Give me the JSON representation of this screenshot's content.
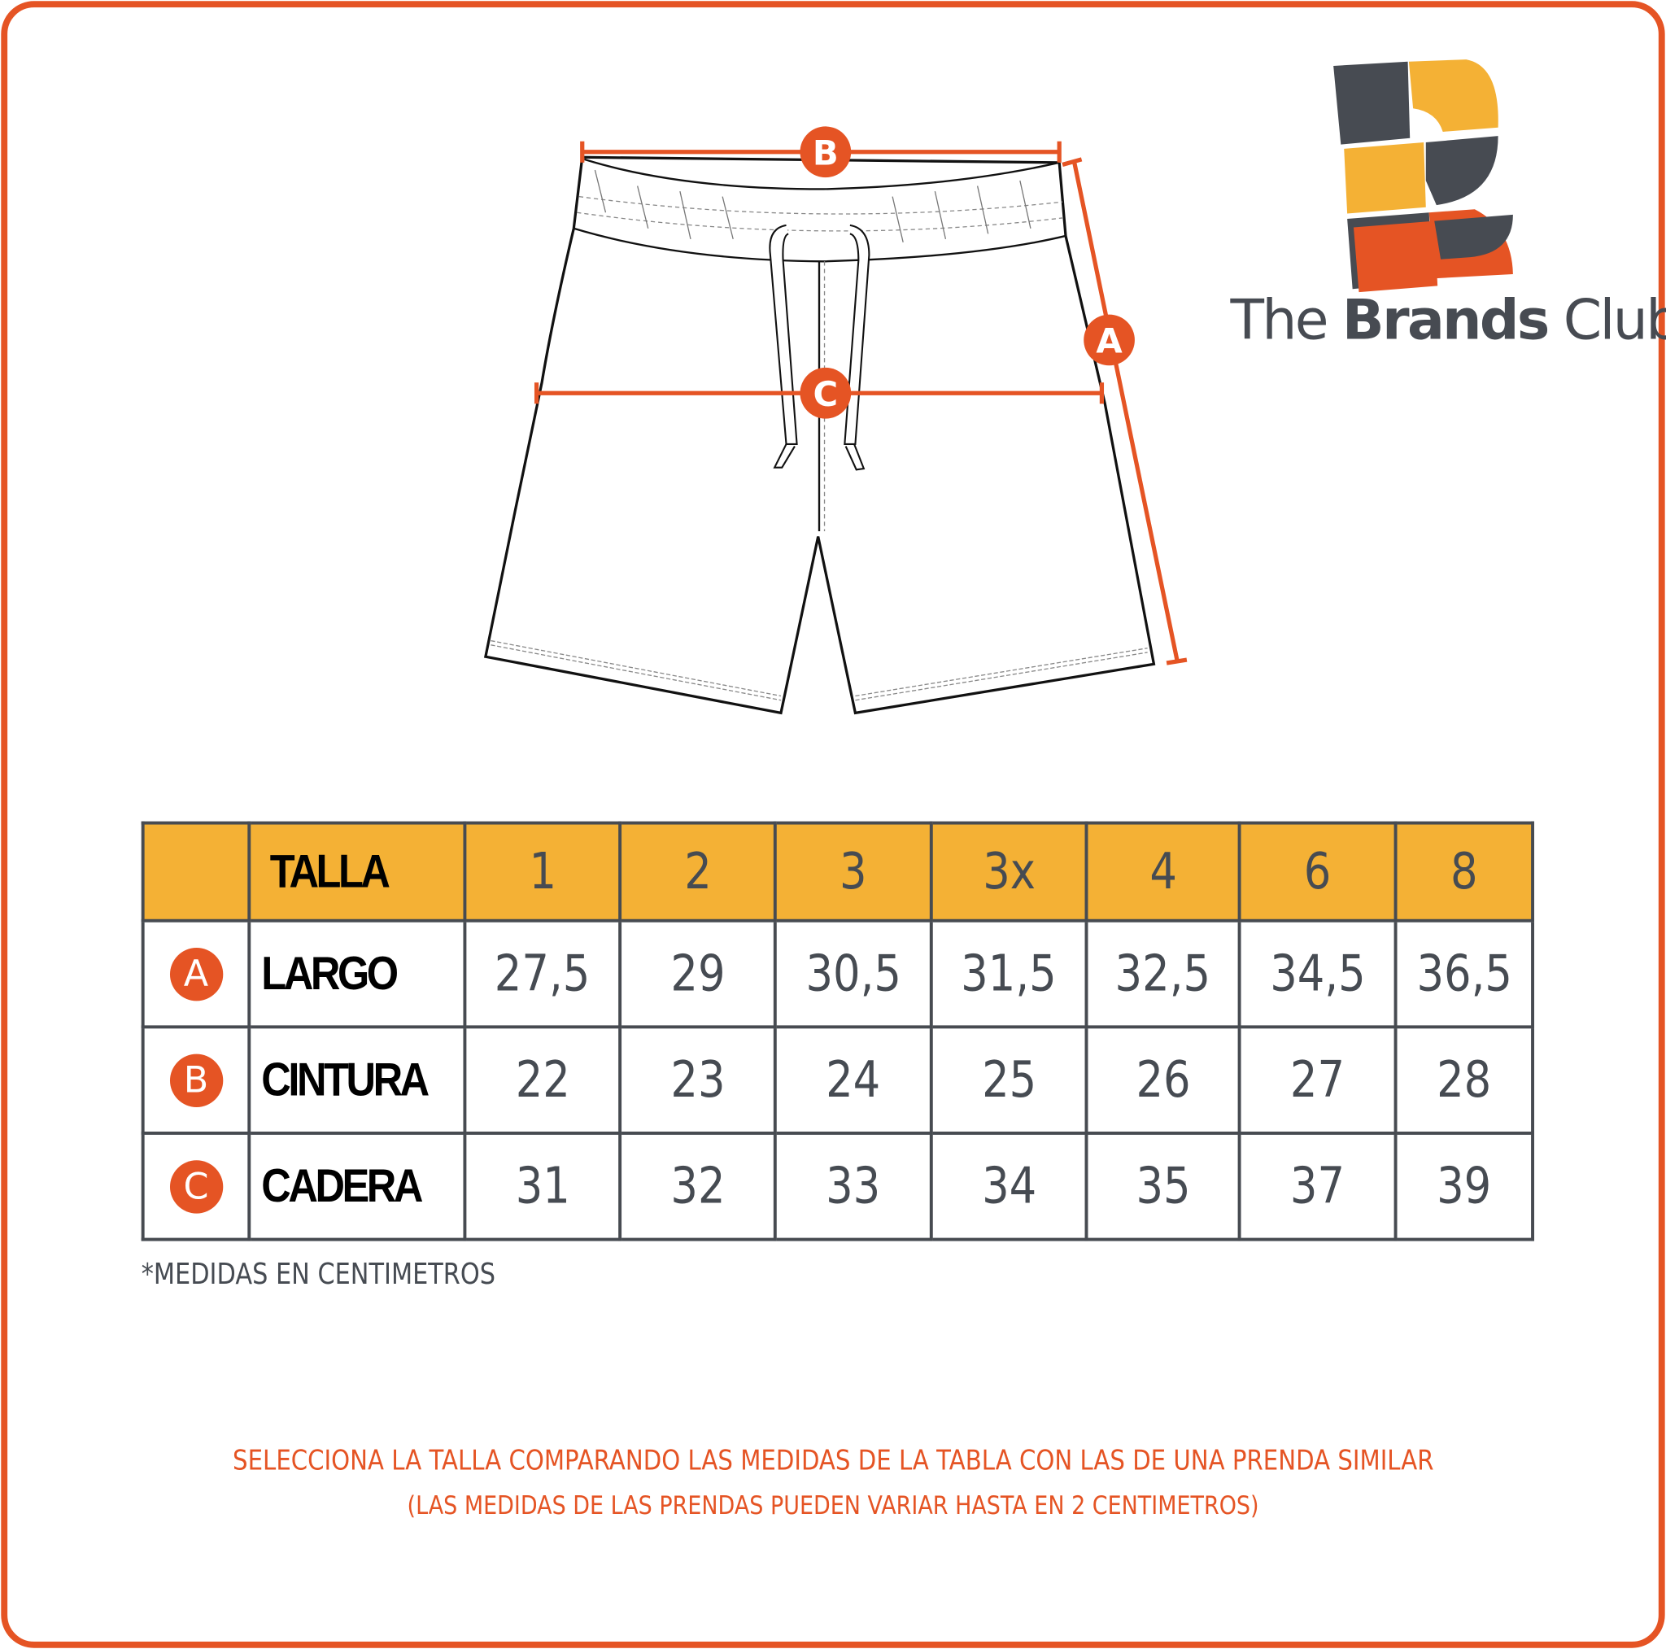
{
  "brand": {
    "name_part1": "The",
    "name_part2": "Brands",
    "name_part3": "Club",
    "colors": {
      "orange": "#e55424",
      "yellow": "#f4b135",
      "gray": "#474b52"
    }
  },
  "diagram": {
    "markers": {
      "A": "A",
      "B": "B",
      "C": "C"
    },
    "accent": "#e55424"
  },
  "table": {
    "header": {
      "label": "TALLA",
      "sizes": [
        "1",
        "2",
        "3",
        "3x",
        "4",
        "6",
        "8"
      ]
    },
    "rows": [
      {
        "letter": "A",
        "label": "LARGO",
        "values": [
          "27,5",
          "29",
          "30,5",
          "31,5",
          "32,5",
          "34,5",
          "36,5"
        ]
      },
      {
        "letter": "B",
        "label": "CINTURA",
        "values": [
          "22",
          "23",
          "24",
          "25",
          "26",
          "27",
          "28"
        ]
      },
      {
        "letter": "C",
        "label": "CADERA",
        "values": [
          "31",
          "32",
          "33",
          "34",
          "35",
          "37",
          "39"
        ]
      }
    ],
    "header_color": "#f4b135"
  },
  "footnote": "*MEDIDAS EN CENTIMETROS",
  "notes": {
    "line1": "SELECCIONA LA TALLA COMPARANDO LAS MEDIDAS DE LA TABLA CON LAS DE UNA PRENDA SIMILAR",
    "line2": "(LAS MEDIDAS DE LAS PRENDAS PUEDEN VARIAR HASTA EN 2 CENTIMETROS)"
  }
}
